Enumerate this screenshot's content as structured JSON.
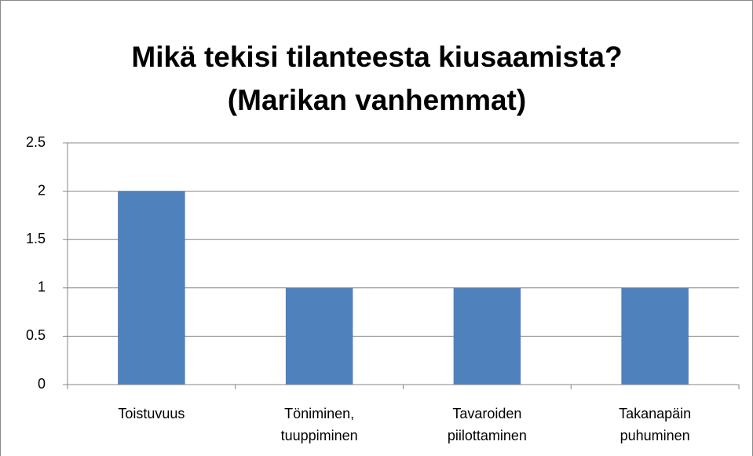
{
  "chart_data": {
    "type": "bar",
    "title": [
      "Mikä tekisi tilanteesta kiusaamista?",
      "(Marikan vanhemmat)"
    ],
    "categories": [
      "Toistuvuus",
      "Töniminen, tuuppiminen",
      "Tavaroiden piilottaminen",
      "Takanapäin puhuminen"
    ],
    "values": [
      2,
      1,
      1,
      1
    ],
    "color": "#4f81bd",
    "ylim": [
      0,
      2.5
    ],
    "yticks": [
      0,
      0.5,
      1,
      1.5,
      2,
      2.5
    ],
    "grid": true
  }
}
